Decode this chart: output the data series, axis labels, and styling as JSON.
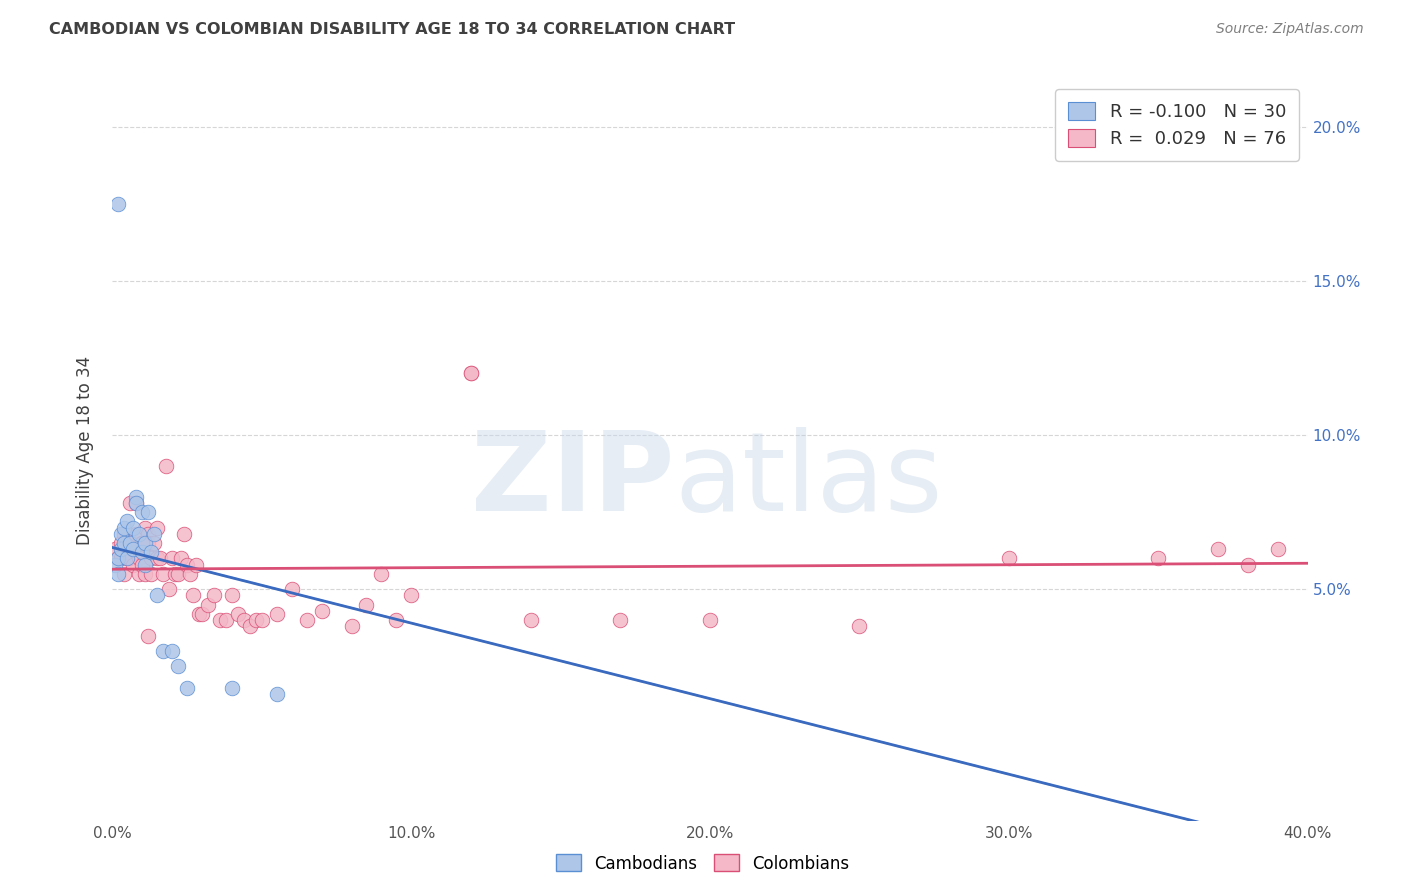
{
  "title": "CAMBODIAN VS COLOMBIAN DISABILITY AGE 18 TO 34 CORRELATION CHART",
  "source": "Source: ZipAtlas.com",
  "ylabel": "Disability Age 18 to 34",
  "xlim": [
    0.0,
    0.4
  ],
  "ylim": [
    -0.025,
    0.215
  ],
  "y_ticks": [
    0.05,
    0.1,
    0.15,
    0.2
  ],
  "y_tick_labels": [
    "5.0%",
    "10.0%",
    "15.0%",
    "20.0%"
  ],
  "x_ticks": [
    0.0,
    0.1,
    0.2,
    0.3,
    0.4
  ],
  "x_tick_labels": [
    "0.0%",
    "10.0%",
    "20.0%",
    "30.0%",
    "40.0%"
  ],
  "cambodian_R": -0.1,
  "cambodian_N": 30,
  "colombian_R": 0.029,
  "colombian_N": 76,
  "cambodian_color": "#aec6e8",
  "colombian_color": "#f4b8c8",
  "cambodian_edge_color": "#5b8fd4",
  "colombian_edge_color": "#e06080",
  "cambodian_line_color": "#3a6abf",
  "colombian_line_color": "#d94f75",
  "dash_color": "#9bb8d8",
  "background_color": "#ffffff",
  "grid_color": "#cccccc",
  "right_axis_color": "#4472c4",
  "title_color": "#404040",
  "source_color": "#808080",
  "cambodian_x": [
    0.001,
    0.002,
    0.002,
    0.003,
    0.003,
    0.004,
    0.004,
    0.005,
    0.005,
    0.006,
    0.007,
    0.007,
    0.008,
    0.008,
    0.009,
    0.01,
    0.01,
    0.011,
    0.011,
    0.012,
    0.013,
    0.014,
    0.015,
    0.017,
    0.02,
    0.022,
    0.025,
    0.04,
    0.055,
    0.002
  ],
  "cambodian_y": [
    0.058,
    0.06,
    0.055,
    0.063,
    0.068,
    0.065,
    0.07,
    0.06,
    0.072,
    0.065,
    0.063,
    0.07,
    0.08,
    0.078,
    0.068,
    0.062,
    0.075,
    0.065,
    0.058,
    0.075,
    0.062,
    0.068,
    0.048,
    0.03,
    0.03,
    0.025,
    0.018,
    0.018,
    0.016,
    0.175
  ],
  "colombian_x": [
    0.001,
    0.002,
    0.003,
    0.003,
    0.004,
    0.004,
    0.005,
    0.005,
    0.006,
    0.006,
    0.007,
    0.007,
    0.008,
    0.008,
    0.009,
    0.009,
    0.01,
    0.01,
    0.011,
    0.011,
    0.012,
    0.012,
    0.013,
    0.013,
    0.014,
    0.015,
    0.015,
    0.016,
    0.017,
    0.018,
    0.019,
    0.02,
    0.021,
    0.022,
    0.023,
    0.024,
    0.025,
    0.026,
    0.027,
    0.028,
    0.029,
    0.03,
    0.032,
    0.034,
    0.036,
    0.038,
    0.04,
    0.042,
    0.044,
    0.046,
    0.048,
    0.05,
    0.055,
    0.06,
    0.065,
    0.07,
    0.08,
    0.085,
    0.09,
    0.095,
    0.1,
    0.12,
    0.14,
    0.17,
    0.2,
    0.25,
    0.3,
    0.35,
    0.37,
    0.38,
    0.39,
    0.006,
    0.008,
    0.01,
    0.012,
    0.12
  ],
  "colombian_y": [
    0.063,
    0.06,
    0.065,
    0.06,
    0.068,
    0.055,
    0.06,
    0.065,
    0.065,
    0.06,
    0.065,
    0.058,
    0.068,
    0.062,
    0.06,
    0.055,
    0.065,
    0.058,
    0.07,
    0.055,
    0.068,
    0.065,
    0.06,
    0.055,
    0.065,
    0.07,
    0.06,
    0.06,
    0.055,
    0.09,
    0.05,
    0.06,
    0.055,
    0.055,
    0.06,
    0.068,
    0.058,
    0.055,
    0.048,
    0.058,
    0.042,
    0.042,
    0.045,
    0.048,
    0.04,
    0.04,
    0.048,
    0.042,
    0.04,
    0.038,
    0.04,
    0.04,
    0.042,
    0.05,
    0.04,
    0.043,
    0.038,
    0.045,
    0.055,
    0.04,
    0.048,
    0.12,
    0.04,
    0.04,
    0.04,
    0.038,
    0.06,
    0.06,
    0.063,
    0.058,
    0.063,
    0.078,
    0.078,
    0.065,
    0.035,
    0.12
  ]
}
